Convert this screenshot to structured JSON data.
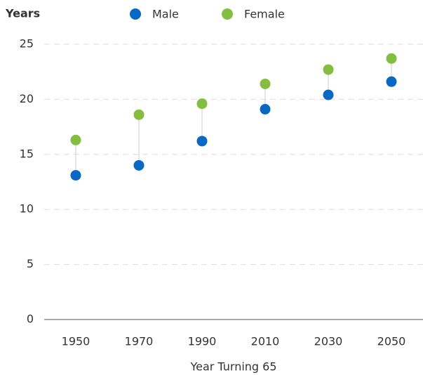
{
  "chart_data": {
    "type": "dumbbell",
    "y_label": "Years",
    "x_label": "Year Turning 65",
    "categories": [
      "1950",
      "1970",
      "1990",
      "2010",
      "2030",
      "2050"
    ],
    "series": [
      {
        "name": "Male",
        "color": "#0a68c4",
        "values": [
          13.1,
          14.0,
          16.2,
          19.1,
          20.4,
          21.6
        ]
      },
      {
        "name": "Female",
        "color": "#84bd41",
        "values": [
          16.3,
          18.6,
          19.6,
          21.4,
          22.7,
          23.7
        ]
      }
    ],
    "ylim": [
      0,
      25
    ],
    "yticks": [
      0,
      5,
      10,
      15,
      20,
      25
    ],
    "grid": true
  }
}
